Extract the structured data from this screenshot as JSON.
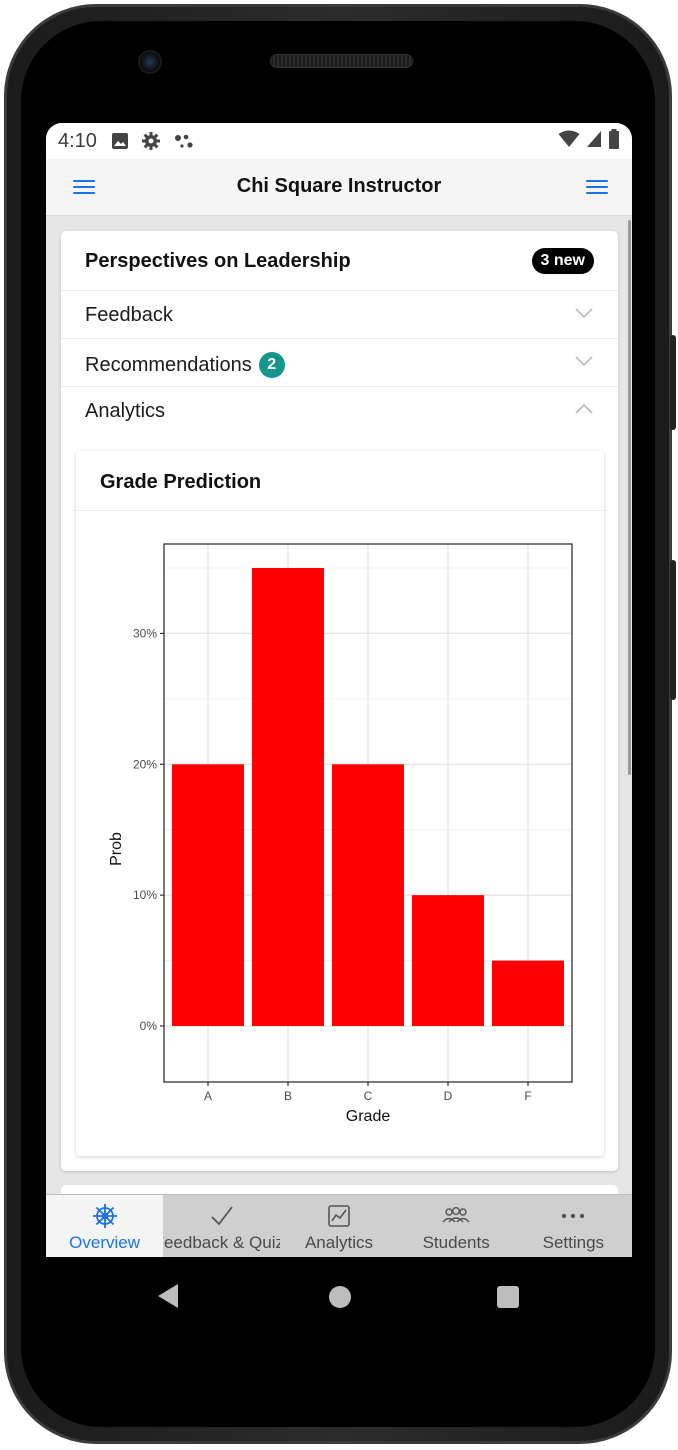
{
  "status_bar": {
    "time": "4:10",
    "left_icons": [
      "image-icon",
      "gear-icon",
      "assistant-dots-icon"
    ],
    "right_icons": [
      "wifi-icon",
      "signal-icon",
      "battery-icon"
    ]
  },
  "header": {
    "title": "Chi Square Instructor",
    "left_menu_icon": "hamburger-icon",
    "right_menu_icon": "hamburger-icon"
  },
  "course_card": {
    "title": "Perspectives on Leadership",
    "new_badge": "3 new",
    "sections": [
      {
        "label": "Feedback",
        "badge": null,
        "expanded": false
      },
      {
        "label": "Recommendations",
        "badge": "2",
        "expanded": false
      },
      {
        "label": "Analytics",
        "badge": null,
        "expanded": true
      }
    ]
  },
  "grade_card": {
    "title": "Grade Prediction"
  },
  "chart_data": {
    "type": "bar",
    "categories": [
      "A",
      "B",
      "C",
      "D",
      "F"
    ],
    "values": [
      0.2,
      0.35,
      0.2,
      0.1,
      0.05
    ],
    "xlabel": "Grade",
    "ylabel": "Prob",
    "ylim": [
      0,
      0.368
    ],
    "yticks": [
      0,
      0.1,
      0.2,
      0.3
    ],
    "ytick_labels": [
      "0%",
      "10%",
      "20%",
      "30%"
    ],
    "bar_color": "#ff0000",
    "grid": true,
    "legend": "none"
  },
  "tabbar": {
    "items": [
      {
        "label": "Overview",
        "icon": "ships-wheel-icon",
        "active": true
      },
      {
        "label": "Feedback & Quiz",
        "icon": "checkmark-icon",
        "active": false
      },
      {
        "label": "Analytics",
        "icon": "chart-icon",
        "active": false
      },
      {
        "label": "Students",
        "icon": "people-icon",
        "active": false
      },
      {
        "label": "Settings",
        "icon": "more-dots-icon",
        "active": false
      }
    ],
    "active_color": "#1a73e8"
  },
  "colors": {
    "accent": "#1a73e8",
    "badge_teal": "#14968a",
    "bar": "#ff0000"
  }
}
